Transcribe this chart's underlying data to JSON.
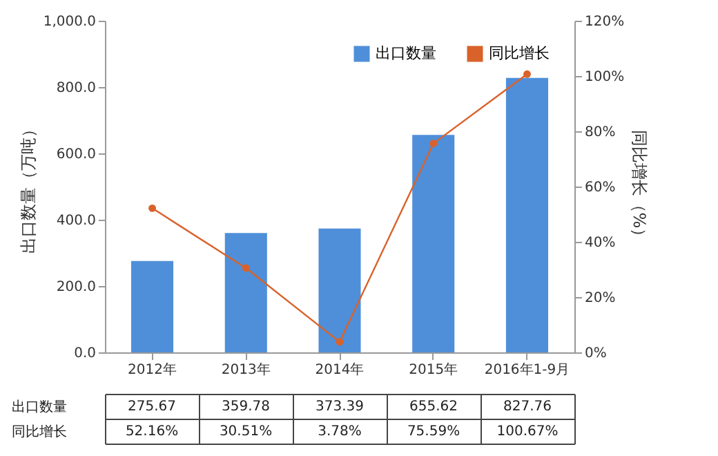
{
  "chart_data": {
    "type": "bar",
    "ylabel": "出口数量（万吨）",
    "y2label": "同比增长（%）",
    "categories": [
      "2012年",
      "2013年",
      "2014年",
      "2015年",
      "2016年1-9月"
    ],
    "series": [
      {
        "name": "出口数量",
        "color": "#4f8fd9",
        "values": [
          275.67,
          359.78,
          373.39,
          655.62,
          827.76
        ],
        "value_labels": [
          "275.67",
          "359.78",
          "373.39",
          "655.62",
          "827.76"
        ]
      },
      {
        "name": "同比增长",
        "type": "line",
        "axis": "y2",
        "color": "#d9622b",
        "marker": "circle",
        "values": [
          52.16,
          30.51,
          3.78,
          75.59,
          100.67
        ],
        "value_labels": [
          "52.16%",
          "30.51%",
          "3.78%",
          "75.59%",
          "100.67%"
        ]
      }
    ],
    "ylim": [
      0,
      1000
    ],
    "yticks": [
      {
        "value": 0,
        "label": "0.0"
      },
      {
        "value": 200,
        "label": "200.0"
      },
      {
        "value": 400,
        "label": "400.0"
      },
      {
        "value": 600,
        "label": "600.0"
      },
      {
        "value": 800,
        "label": "800.0"
      },
      {
        "value": 1000,
        "label": "1,000.0"
      }
    ],
    "y2lim": [
      0,
      120
    ],
    "y2ticks": [
      {
        "value": 0,
        "label": "0%"
      },
      {
        "value": 20,
        "label": "20%"
      },
      {
        "value": 40,
        "label": "40%"
      },
      {
        "value": 60,
        "label": "60%"
      },
      {
        "value": 80,
        "label": "80%"
      },
      {
        "value": 100,
        "label": "100%"
      },
      {
        "value": 120,
        "label": "120%"
      }
    ],
    "legend": "top right"
  }
}
